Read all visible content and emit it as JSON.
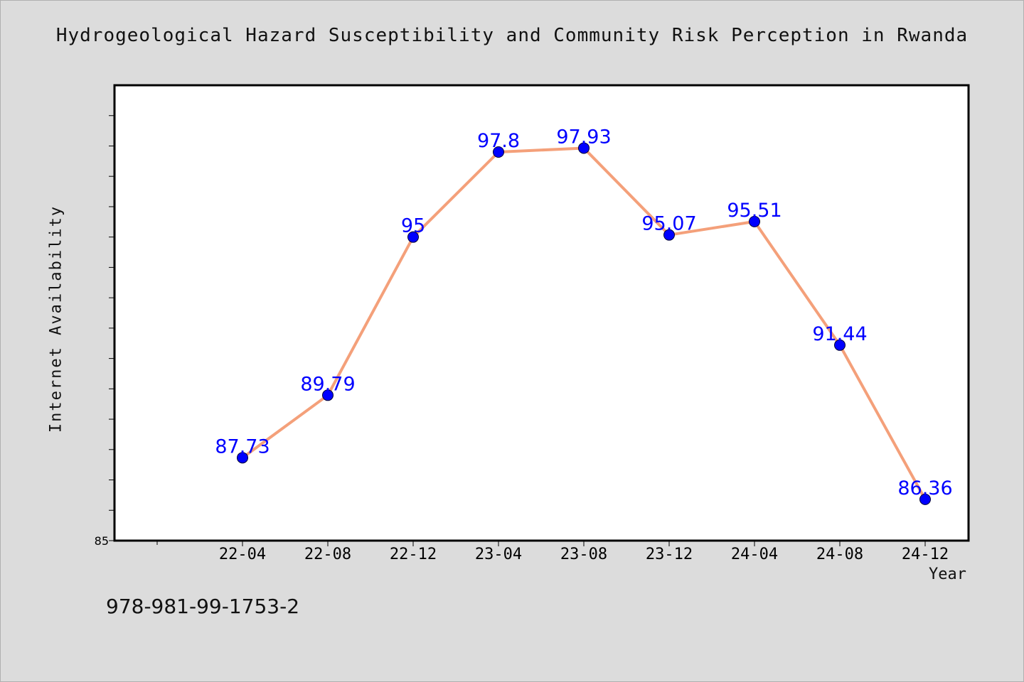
{
  "chart_data": {
    "type": "line",
    "title": "Hydrogeological Hazard Susceptibility and Community Risk Perception in Rwanda",
    "xlabel": "Year",
    "ylabel": "Internet Availability",
    "categories": [
      "22-04",
      "22-08",
      "22-12",
      "23-04",
      "23-08",
      "23-12",
      "24-04",
      "24-08",
      "24-12"
    ],
    "values": [
      87.73,
      89.79,
      95,
      97.8,
      97.93,
      95.07,
      95.51,
      91.44,
      86.36
    ],
    "value_labels": [
      "87.73",
      "89.79",
      "95",
      "97.8",
      "97.93",
      "95.07",
      "95.51",
      "91.44",
      "86.36"
    ],
    "ylim": [
      85,
      100
    ],
    "y_tick_labels": [
      "85"
    ],
    "grid": false,
    "line_color": "#f4a07a",
    "marker_color": "#0000ff",
    "label_color": "#0000ff"
  },
  "footer": {
    "isbn": "978-981-99-1753-2"
  }
}
